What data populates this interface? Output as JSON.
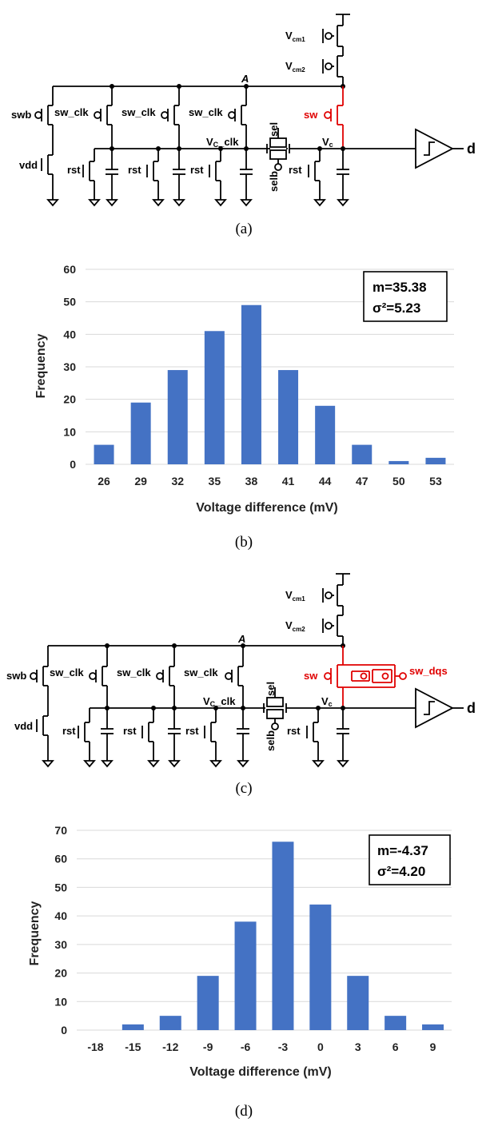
{
  "panels": {
    "a": {
      "caption": "(a)"
    },
    "b": {
      "caption": "(b)"
    },
    "c": {
      "caption": "(c)"
    },
    "d": {
      "caption": "(d)"
    }
  },
  "circuit": {
    "swb": "swb",
    "vdd": "vdd",
    "sw_clk": "sw_clk",
    "rst": "rst",
    "node_a": "A",
    "vc_clk_main": "V",
    "vc_clk_sub": "C",
    "vc_clk_tail": "_clk",
    "sel": "sel",
    "selb": "selb",
    "vc_main": "V",
    "vc_sub": "c",
    "sw": "sw",
    "sw_dqs": "sw_dqs",
    "vcm1_main": "V",
    "vcm1_sub": "cm1",
    "vcm2_main": "V",
    "vcm2_sub": "cm2",
    "out": "d",
    "colors": {
      "highlight": "#e00000",
      "wire": "#000000"
    }
  },
  "chart_data": [
    {
      "type": "bar",
      "categories": [
        "26",
        "29",
        "32",
        "35",
        "38",
        "41",
        "44",
        "47",
        "50",
        "53"
      ],
      "values": [
        6,
        19,
        29,
        41,
        49,
        29,
        18,
        6,
        1,
        2
      ],
      "xlabel": "Voltage difference (mV)",
      "ylabel": "Frequency",
      "ylim": [
        0,
        60
      ],
      "yticks": [
        0,
        10,
        20,
        30,
        40,
        50,
        60
      ],
      "annotation": [
        "m=35.38",
        "σ²=5.23"
      ],
      "grid": true,
      "bar_color": "#4472c4"
    },
    {
      "type": "bar",
      "categories": [
        "-18",
        "-15",
        "-12",
        "-9",
        "-6",
        "-3",
        "0",
        "3",
        "6",
        "9"
      ],
      "values": [
        0,
        2,
        5,
        19,
        38,
        66,
        44,
        19,
        5,
        2
      ],
      "xlabel": "Voltage difference (mV)",
      "ylabel": "Frequency",
      "ylim": [
        0,
        70
      ],
      "yticks": [
        0,
        10,
        20,
        30,
        40,
        50,
        60,
        70
      ],
      "annotation": [
        "m=-4.37",
        "σ²=4.20"
      ],
      "grid": true,
      "bar_color": "#4472c4"
    }
  ]
}
